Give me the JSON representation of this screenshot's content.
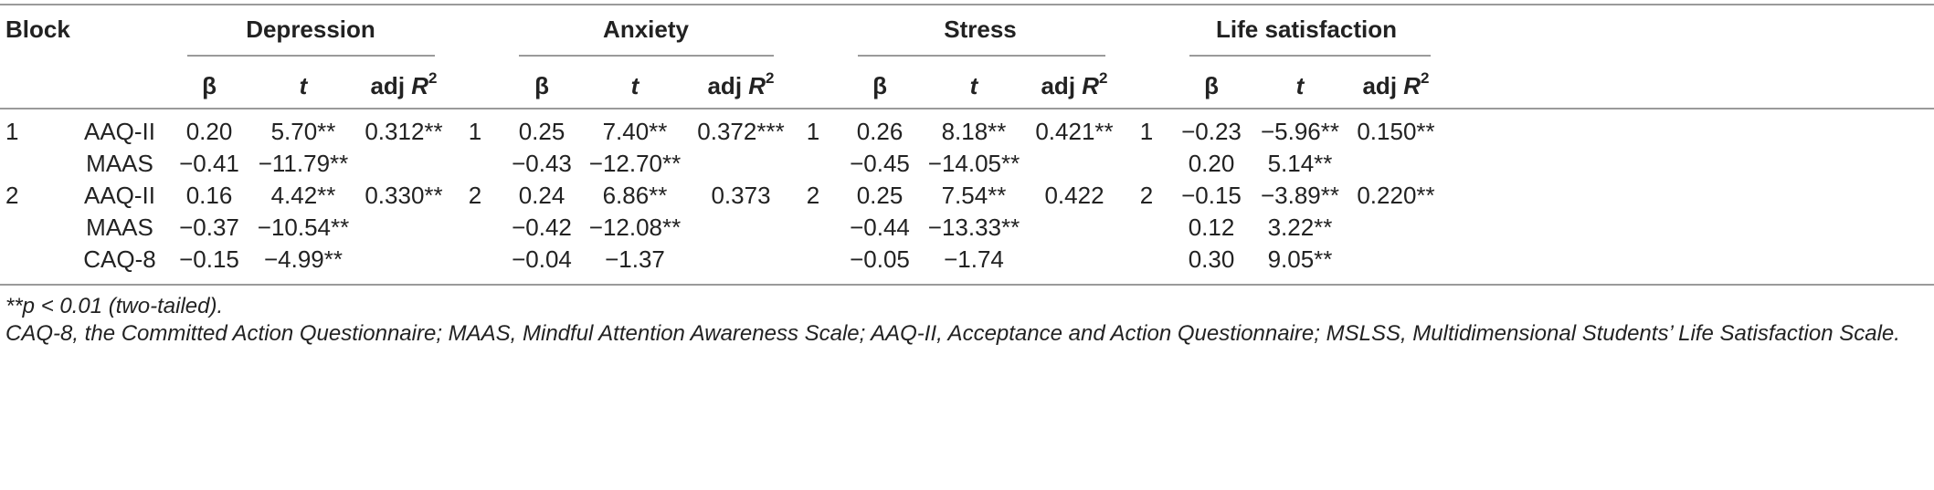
{
  "header": {
    "block_label": "Block",
    "groups": [
      "Depression",
      "Anxiety",
      "Stress",
      "Life satisfaction"
    ],
    "beta": "β",
    "t": "t",
    "adj_prefix": "adj ",
    "adj_R": "R",
    "adj_sup": "2"
  },
  "rows": [
    {
      "block": "1",
      "predictor": "AAQ-II",
      "cells": [
        [
          "0.20",
          "5.70**",
          "0.312**"
        ],
        [
          "0.25",
          "7.40**",
          "0.372***"
        ],
        [
          "0.26",
          "8.18**",
          "0.421**"
        ],
        [
          "−0.23",
          "−5.96**",
          "0.150**"
        ]
      ],
      "group_blocks": [
        "1",
        "1",
        "1"
      ]
    },
    {
      "block": "",
      "predictor": "MAAS",
      "cells": [
        [
          "−0.41",
          "−11.79**",
          ""
        ],
        [
          "−0.43",
          "−12.70**",
          ""
        ],
        [
          "−0.45",
          "−14.05**",
          ""
        ],
        [
          "0.20",
          "5.14**",
          ""
        ]
      ],
      "group_blocks": [
        "",
        "",
        ""
      ]
    },
    {
      "block": "2",
      "predictor": "AAQ-II",
      "cells": [
        [
          "0.16",
          "4.42**",
          "0.330**"
        ],
        [
          "0.24",
          "6.86**",
          "0.373"
        ],
        [
          "0.25",
          "7.54**",
          "0.422"
        ],
        [
          "−0.15",
          "−3.89**",
          "0.220**"
        ]
      ],
      "group_blocks": [
        "2",
        "2",
        "2"
      ]
    },
    {
      "block": "",
      "predictor": "MAAS",
      "cells": [
        [
          "−0.37",
          "−10.54**",
          ""
        ],
        [
          "−0.42",
          "−12.08**",
          ""
        ],
        [
          "−0.44",
          "−13.33**",
          ""
        ],
        [
          "0.12",
          "3.22**",
          ""
        ]
      ],
      "group_blocks": [
        "",
        "",
        ""
      ]
    },
    {
      "block": "",
      "predictor": "CAQ-8",
      "cells": [
        [
          "−0.15",
          "−4.99**",
          ""
        ],
        [
          "−0.04",
          "−1.37",
          ""
        ],
        [
          "−0.05",
          "−1.74",
          ""
        ],
        [
          "0.30",
          "9.05**",
          ""
        ]
      ],
      "group_blocks": [
        "",
        "",
        ""
      ]
    }
  ],
  "notes": {
    "significance": "**p < 0.01 (two-tailed).",
    "abbreviations": "CAQ-8, the Committed Action Questionnaire; MAAS, Mindful Attention Awareness Scale; AAQ-II, Acceptance and Action Questionnaire; MSLSS, Multidimensional Students’ Life Satisfaction Scale."
  }
}
